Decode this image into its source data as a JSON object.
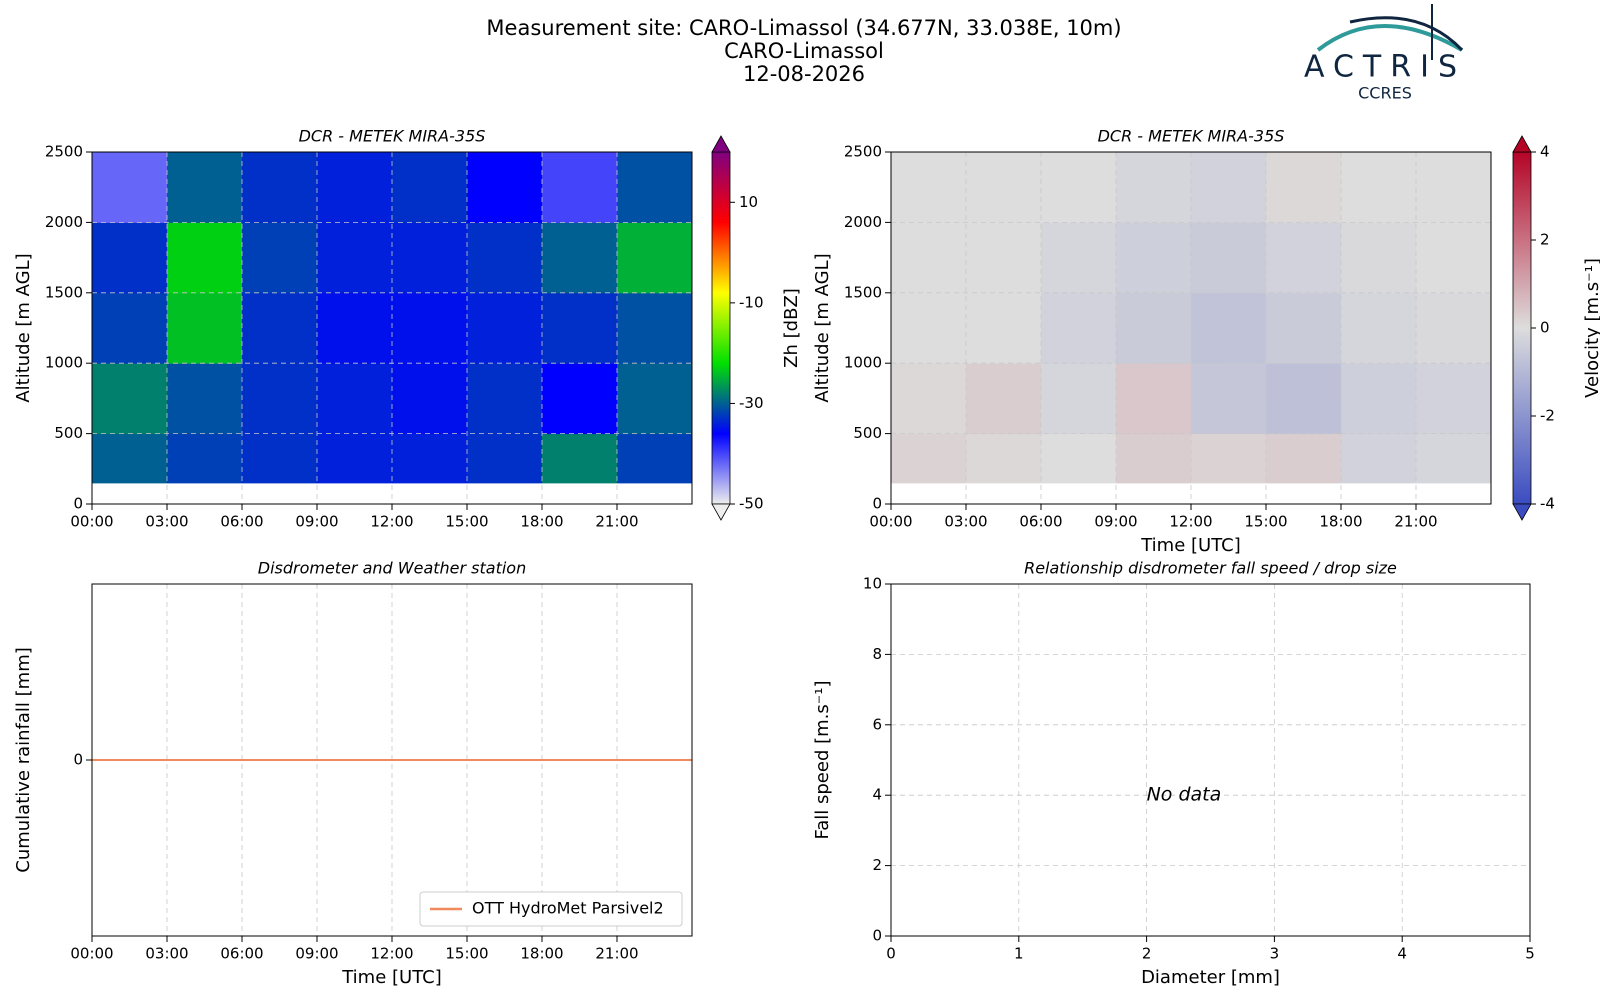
{
  "header": {
    "title": [
      "Measurement site: CARO-Limassol (34.677N, 33.038E, 10m)",
      "CARO-Limassol",
      "12-08-2026"
    ],
    "logo": [
      "ACTRIS",
      "CCRES"
    ]
  },
  "chart_data": [
    {
      "type": "heatmap",
      "title": "DCR - METEK MIRA-35S",
      "ylabel": "Altitude [m AGL]",
      "colorbar_label": "Zh [dBZ]",
      "x_edges": [
        0,
        3,
        6,
        9,
        12,
        15,
        18,
        21,
        24
      ],
      "y_edges": [
        150,
        500,
        1000,
        1500,
        2000,
        2500
      ],
      "z": [
        [
          -30,
          -32,
          -33,
          -34,
          -34,
          -33,
          -28,
          -32
        ],
        [
          -28,
          -31,
          -33,
          -34,
          -35,
          -33,
          -36,
          -30
        ],
        [
          -32,
          -24,
          -33,
          -35,
          -35,
          -34,
          -33,
          -31
        ],
        [
          -33,
          -23,
          -32,
          -34,
          -34,
          -33,
          -30,
          -25
        ],
        [
          -42,
          -30,
          -33,
          -34,
          -33,
          -36,
          -40,
          -31
        ]
      ],
      "clim": [
        -50,
        20
      ],
      "cticks": [
        -50,
        -30,
        -10,
        10
      ],
      "colormap": [
        "#eeeeee",
        "#0000ff",
        "#00e000",
        "#ffff00",
        "#ff0000",
        "#800080"
      ],
      "xlim": [
        0,
        24
      ],
      "xticks": [
        {
          "value": 0,
          "label": "00:00"
        },
        {
          "value": 3,
          "label": "03:00"
        },
        {
          "value": 6,
          "label": "06:00"
        },
        {
          "value": 9,
          "label": "09:00"
        },
        {
          "value": 12,
          "label": "12:00"
        },
        {
          "value": 15,
          "label": "15:00"
        },
        {
          "value": 18,
          "label": "18:00"
        },
        {
          "value": 21,
          "label": "21:00"
        }
      ],
      "ylim": [
        0,
        2500
      ],
      "yticks": [
        0,
        500,
        1000,
        1500,
        2000,
        2500
      ],
      "grid": true
    },
    {
      "type": "heatmap",
      "title": "DCR - METEK MIRA-35S",
      "xlabel": "Time [UTC]",
      "ylabel": "Altitude [m AGL]",
      "colorbar_label": "Velocity [m.s⁻¹]",
      "x_edges": [
        0,
        3,
        6,
        9,
        12,
        15,
        18,
        21,
        24
      ],
      "y_edges": [
        150,
        500,
        1000,
        1500,
        2000,
        2500
      ],
      "z": [
        [
          0.2,
          0.1,
          0,
          0.3,
          0.2,
          0.3,
          -0.3,
          -0.2
        ],
        [
          0.1,
          0.3,
          -0.2,
          0.4,
          -0.6,
          -0.8,
          -0.4,
          -0.3
        ],
        [
          0,
          0,
          -0.3,
          -0.5,
          -0.7,
          -0.5,
          -0.2,
          -0.1
        ],
        [
          0,
          0,
          -0.2,
          -0.4,
          -0.5,
          -0.3,
          -0.1,
          0
        ],
        [
          0,
          0,
          0,
          -0.2,
          -0.3,
          0.1,
          0,
          0
        ]
      ],
      "clim": [
        -4,
        4
      ],
      "cticks": [
        -4,
        -2,
        0,
        2,
        4
      ],
      "colormap": [
        "#3b4cc0",
        "#dddddd",
        "#b40426"
      ],
      "xlim": [
        0,
        24
      ],
      "xticks": [
        {
          "value": 0,
          "label": "00:00"
        },
        {
          "value": 3,
          "label": "03:00"
        },
        {
          "value": 6,
          "label": "06:00"
        },
        {
          "value": 9,
          "label": "09:00"
        },
        {
          "value": 12,
          "label": "12:00"
        },
        {
          "value": 15,
          "label": "15:00"
        },
        {
          "value": 18,
          "label": "18:00"
        },
        {
          "value": 21,
          "label": "21:00"
        }
      ],
      "ylim": [
        0,
        2500
      ],
      "yticks": [
        0,
        500,
        1000,
        1500,
        2000,
        2500
      ],
      "grid": true
    },
    {
      "type": "line",
      "title": "Disdrometer and Weather station",
      "xlabel": "Time [UTC]",
      "ylabel": "Cumulative rainfall [mm]",
      "x": [
        0,
        24
      ],
      "series": [
        {
          "name": "OTT HydroMet Parsivel2",
          "color": "#f08a5d",
          "values": [
            0,
            0
          ]
        }
      ],
      "xlim": [
        0,
        24
      ],
      "xticks": [
        {
          "value": 0,
          "label": "00:00"
        },
        {
          "value": 3,
          "label": "03:00"
        },
        {
          "value": 6,
          "label": "06:00"
        },
        {
          "value": 9,
          "label": "09:00"
        },
        {
          "value": 12,
          "label": "12:00"
        },
        {
          "value": 15,
          "label": "15:00"
        },
        {
          "value": 18,
          "label": "18:00"
        },
        {
          "value": 21,
          "label": "21:00"
        }
      ],
      "ylim": [
        -1,
        1
      ],
      "yticks": [
        0
      ],
      "grid": true,
      "legend": "lower right"
    },
    {
      "type": "scatter",
      "title": "Relationship disdrometer fall speed / drop size",
      "xlabel": "Diameter [mm]",
      "ylabel": "Fall speed [m.s⁻¹]",
      "x": [],
      "values": [],
      "annotation": "No data",
      "xlim": [
        0,
        5
      ],
      "xticks": [
        0,
        1,
        2,
        3,
        4,
        5
      ],
      "ylim": [
        0,
        10
      ],
      "yticks": [
        0,
        2,
        4,
        6,
        8,
        10
      ],
      "grid": true
    }
  ]
}
